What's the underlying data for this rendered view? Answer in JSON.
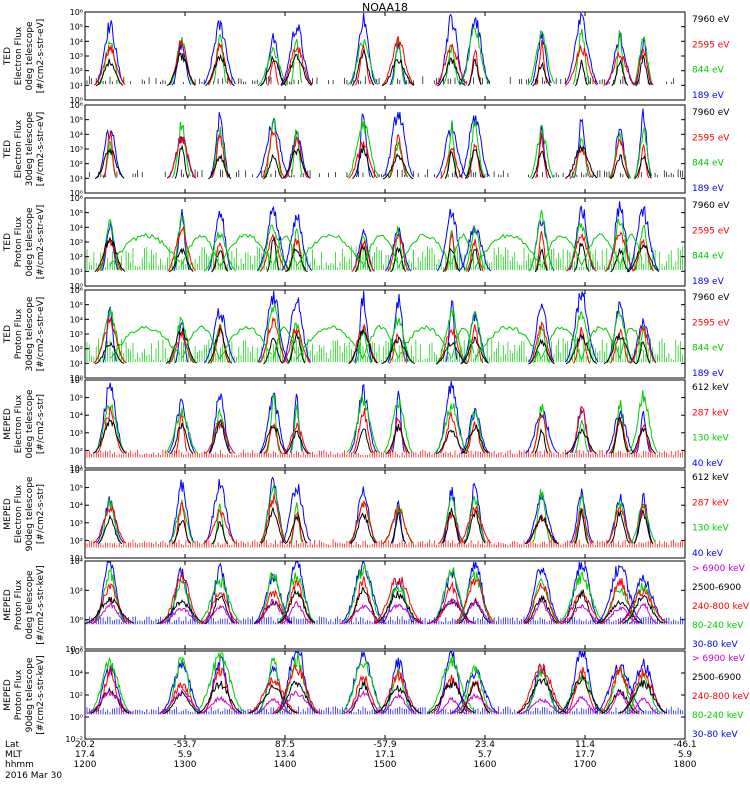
{
  "chart_data": {
    "type": "line",
    "title": "NOAA18",
    "panels": [
      {
        "ylabel": [
          "TED",
          "Electron Flux",
          "0deg telescope",
          "[#/cm2-s-str-eV]"
        ],
        "yticks": [
          "10⁰",
          "10¹",
          "10²",
          "10³",
          "10⁴",
          "10⁵",
          "10⁶"
        ],
        "ylim_log10": [
          0,
          6
        ],
        "legend": [
          {
            "label": "7960 eV",
            "color": "#000000"
          },
          {
            "label": "2595 eV",
            "color": "#ff0000"
          },
          {
            "label": "844 eV",
            "color": "#00cc00"
          },
          {
            "label": "189 eV",
            "color": "#0000ff"
          }
        ]
      },
      {
        "ylabel": [
          "TED",
          "Electron Flux",
          "30deg telescope",
          "[#/cm2-s-str-eV]"
        ],
        "yticks": [
          "10⁰",
          "10¹",
          "10²",
          "10³",
          "10⁴",
          "10⁵",
          "10⁶"
        ],
        "ylim_log10": [
          0,
          6
        ],
        "legend": [
          {
            "label": "7960 eV",
            "color": "#000000"
          },
          {
            "label": "2595 eV",
            "color": "#ff0000"
          },
          {
            "label": "844 eV",
            "color": "#00cc00"
          },
          {
            "label": "189 eV",
            "color": "#0000ff"
          }
        ]
      },
      {
        "ylabel": [
          "TED",
          "Proton Flux",
          "0deg telescope",
          "[#/cm2-s-str-eV]"
        ],
        "yticks": [
          "10⁰",
          "10¹",
          "10²",
          "10³",
          "10⁴",
          "10⁵",
          "10⁶"
        ],
        "ylim_log10": [
          0,
          6
        ],
        "legend": [
          {
            "label": "7960 eV",
            "color": "#000000"
          },
          {
            "label": "2595 eV",
            "color": "#ff0000"
          },
          {
            "label": "844 eV",
            "color": "#00cc00"
          },
          {
            "label": "189 eV",
            "color": "#0000ff"
          }
        ]
      },
      {
        "ylabel": [
          "TED",
          "Proton Flux",
          "30deg telescope",
          "[#/cm2-s-str-eV]"
        ],
        "yticks": [
          "10⁰",
          "10¹",
          "10²",
          "10³",
          "10⁴",
          "10⁵",
          "10⁶"
        ],
        "ylim_log10": [
          0,
          6
        ],
        "legend": [
          {
            "label": "7960 eV",
            "color": "#000000"
          },
          {
            "label": "2595 eV",
            "color": "#ff0000"
          },
          {
            "label": "844 eV",
            "color": "#00cc00"
          },
          {
            "label": "189 eV",
            "color": "#0000ff"
          }
        ]
      },
      {
        "ylabel": [
          "MEPED",
          "Electron Flux",
          "0deg telescope",
          "[#/cm2-s-str]"
        ],
        "yticks": [
          "10¹",
          "10²",
          "10³",
          "10⁴",
          "10⁵",
          "10⁶"
        ],
        "ylim_log10": [
          1,
          6
        ],
        "legend": [
          {
            "label": "612 keV",
            "color": "#000000"
          },
          {
            "label": "287 keV",
            "color": "#ff0000"
          },
          {
            "label": "130 keV",
            "color": "#00cc00"
          },
          {
            "label": "40 keV",
            "color": "#0000ff"
          }
        ]
      },
      {
        "ylabel": [
          "MEPED",
          "Electron Flux",
          "90deg telescope",
          "[#/cm2-s-str]"
        ],
        "yticks": [
          "10¹",
          "10²",
          "10³",
          "10⁴",
          "10⁵",
          "10⁶"
        ],
        "ylim_log10": [
          1,
          6
        ],
        "legend": [
          {
            "label": "612 keV",
            "color": "#000000"
          },
          {
            "label": "287 keV",
            "color": "#ff0000"
          },
          {
            "label": "130 keV",
            "color": "#00cc00"
          },
          {
            "label": "40 keV",
            "color": "#0000ff"
          }
        ]
      },
      {
        "ylabel": [
          "MEPED",
          "Proton Flux",
          "0deg telescope",
          "[#/cm2-s-str-keV]"
        ],
        "yticks": [
          "10⁻²",
          "10⁰",
          "10²",
          "10⁴"
        ],
        "ylim_log10": [
          -2,
          5
        ],
        "legend": [
          {
            "label": "> 6900 keV",
            "color": "#cc00cc"
          },
          {
            "label": "2500-6900",
            "color": "#000000"
          },
          {
            "label": "240-800 keV",
            "color": "#ff0000"
          },
          {
            "label": "80-240 keV",
            "color": "#00cc00"
          },
          {
            "label": "30-80 keV",
            "color": "#0000ff"
          }
        ]
      },
      {
        "ylabel": [
          "MEPED",
          "Proton Flux",
          "90deg telescope",
          "[#/cm2-s-str-keV]"
        ],
        "yticks": [
          "10⁻²",
          "10⁰",
          "10²",
          "10⁴",
          "10⁶"
        ],
        "ylim_log10": [
          -2,
          6
        ],
        "legend": [
          {
            "label": "> 6900 keV",
            "color": "#cc00cc"
          },
          {
            "label": "2500-6900",
            "color": "#000000"
          },
          {
            "label": "240-800 keV",
            "color": "#ff0000"
          },
          {
            "label": "80-240 keV",
            "color": "#00cc00"
          },
          {
            "label": "30-80 keV",
            "color": "#0000ff"
          }
        ]
      }
    ],
    "x_axis": {
      "row_labels": [
        "Lat",
        "MLT",
        "hhmm"
      ],
      "columns": [
        {
          "lat": "20.2",
          "mlt": "17.4",
          "hhmm": "1200"
        },
        {
          "lat": "-53.7",
          "mlt": "5.9",
          "hhmm": "1300"
        },
        {
          "lat": "87.5",
          "mlt": "13.4",
          "hhmm": "1400"
        },
        {
          "lat": "-57.9",
          "mlt": "17.1",
          "hhmm": "1500"
        },
        {
          "lat": "23.4",
          "mlt": "5.7",
          "hhmm": "1600"
        },
        {
          "lat": "11.4",
          "mlt": "17.7",
          "hhmm": "1700"
        },
        {
          "lat": "-46.1",
          "mlt": "5.9",
          "hhmm": "1800"
        }
      ],
      "date": "2016 Mar 30"
    },
    "pass_centers_hhmm": [
      1215,
      1258,
      1321,
      1353,
      1407,
      1447,
      1508,
      1540,
      1554,
      1634,
      1658,
      1721,
      1735
    ]
  }
}
